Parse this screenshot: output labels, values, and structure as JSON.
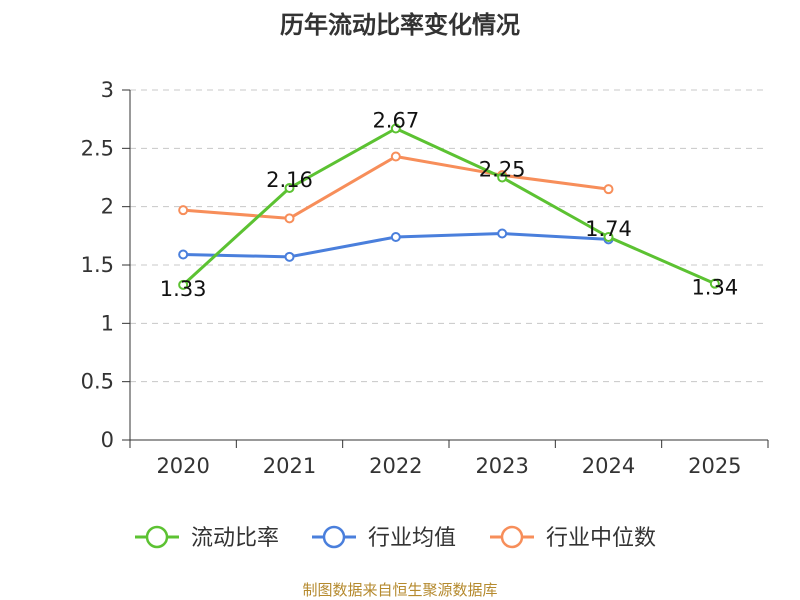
{
  "chart_data": {
    "type": "line",
    "title": "历年流动比率变化情况",
    "xlabel": "",
    "ylabel": "",
    "categories": [
      "2020",
      "2021",
      "2022",
      "2023",
      "2024",
      "2025"
    ],
    "ylim": [
      0,
      3
    ],
    "yticks": [
      0,
      0.5,
      1,
      1.5,
      2,
      2.5,
      3
    ],
    "ytick_labels": [
      "0",
      "0.5",
      "1",
      "1.5",
      "2",
      "2.5",
      "3"
    ],
    "grid": true,
    "legend_position": "bottom",
    "series": [
      {
        "name": "流动比率",
        "color": "#5cc232",
        "values": [
          1.33,
          2.16,
          2.67,
          2.25,
          1.74,
          1.34
        ],
        "labels": [
          "1.33",
          "2.16",
          "2.67",
          "2.25",
          "1.74",
          "1.34"
        ]
      },
      {
        "name": "行业均值",
        "color": "#4a7fdc",
        "values": [
          1.59,
          1.57,
          1.74,
          1.77,
          1.72,
          null
        ]
      },
      {
        "name": "行业中位数",
        "color": "#f78e5a",
        "values": [
          1.97,
          1.9,
          2.43,
          2.27,
          2.15,
          null
        ]
      }
    ],
    "source": "制图数据来自恒生聚源数据库"
  }
}
